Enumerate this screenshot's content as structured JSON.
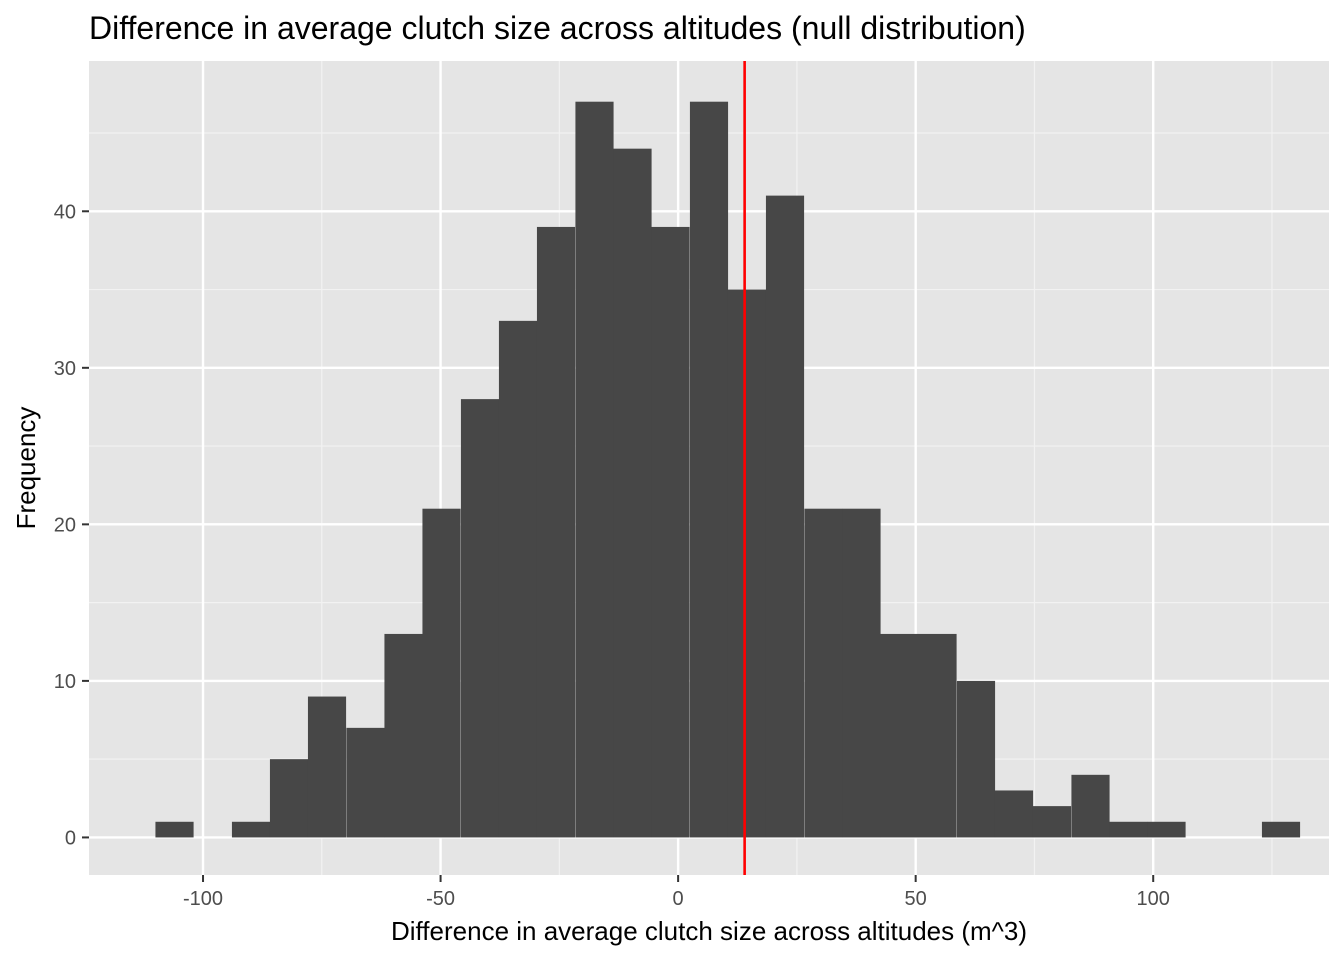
{
  "chart_data": {
    "type": "bar",
    "title": "Difference in average clutch size across altitudes (null distribution)",
    "xlabel": "Difference in average clutch size across altitudes (m^3)",
    "ylabel": "Frequency",
    "xlim": [
      -124,
      137
    ],
    "ylim": [
      -2.4,
      49.6
    ],
    "x_ticks": [
      -100,
      -50,
      0,
      50,
      100
    ],
    "x_tick_labels": [
      "-100",
      "-50",
      "0",
      "50",
      "100"
    ],
    "y_ticks": [
      0,
      10,
      20,
      30,
      40
    ],
    "y_tick_labels": [
      "0",
      "10",
      "20",
      "30",
      "40"
    ],
    "bin_width": 8.03,
    "bins_center": [
      -106.0,
      -98.0,
      -89.9,
      -81.9,
      -73.9,
      -65.8,
      -57.8,
      -49.8,
      -41.7,
      -33.7,
      -25.7,
      -17.6,
      -9.6,
      -1.6,
      6.5,
      14.5,
      22.5,
      30.6,
      38.6,
      46.6,
      54.6,
      62.7,
      70.7,
      78.7,
      86.8,
      94.8,
      102.8,
      110.9,
      118.9,
      126.9
    ],
    "values": [
      1,
      0,
      1,
      5,
      9,
      7,
      13,
      21,
      28,
      33,
      39,
      47,
      44,
      39,
      47,
      35,
      41,
      21,
      21,
      13,
      13,
      10,
      3,
      2,
      4,
      1,
      1,
      0,
      0,
      1
    ],
    "vline": {
      "x": 14,
      "color": "#ff0000"
    },
    "bar_color": "#474747",
    "panel_background": "#e5e5e5",
    "grid": true,
    "legend": "none"
  }
}
